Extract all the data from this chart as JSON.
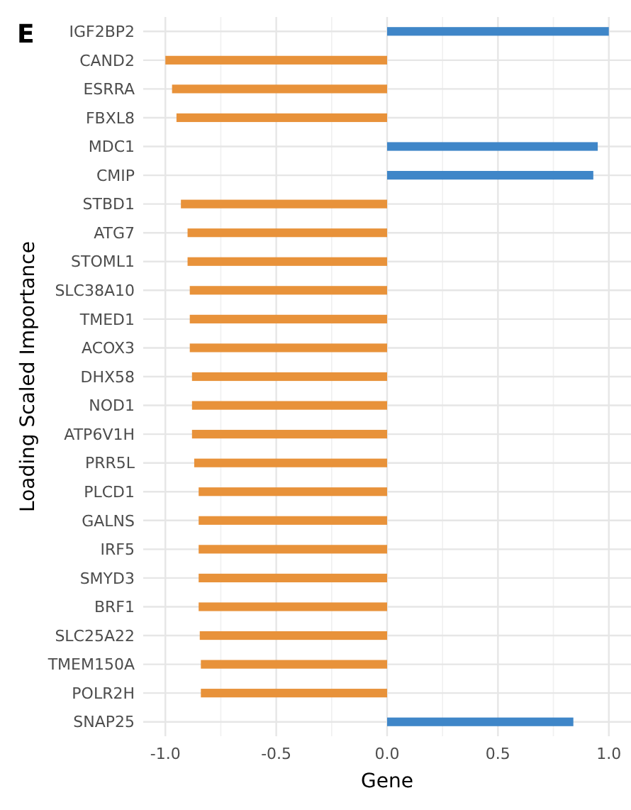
{
  "chart_data": {
    "type": "bar",
    "orientation": "horizontal",
    "title": "E",
    "xlabel": "Gene",
    "ylabel": "Loading Scaled Importance",
    "categories": [
      "IGF2BP2",
      "CAND2",
      "ESRRA",
      "FBXL8",
      "MDC1",
      "CMIP",
      "STBD1",
      "ATG7",
      "STOML1",
      "SLC38A10",
      "TMED1",
      "ACOX3",
      "DHX58",
      "NOD1",
      "ATP6V1H",
      "PRR5L",
      "PLCD1",
      "GALNS",
      "IRF5",
      "SMYD3",
      "BRF1",
      "SLC25A22",
      "TMEM150A",
      "POLR2H",
      "SNAP25"
    ],
    "values": [
      1.0,
      -1.0,
      -0.97,
      -0.95,
      0.95,
      0.93,
      -0.93,
      -0.9,
      -0.9,
      -0.89,
      -0.89,
      -0.89,
      -0.88,
      -0.88,
      -0.88,
      -0.87,
      -0.85,
      -0.85,
      -0.85,
      -0.85,
      -0.85,
      -0.845,
      -0.84,
      -0.84,
      0.84
    ],
    "colors": [
      "#3f86c8",
      "#e8923a",
      "#e8923a",
      "#e8923a",
      "#3f86c8",
      "#3f86c8",
      "#e8923a",
      "#e8923a",
      "#e8923a",
      "#e8923a",
      "#e8923a",
      "#e8923a",
      "#e8923a",
      "#e8923a",
      "#e8923a",
      "#e8923a",
      "#e8923a",
      "#e8923a",
      "#e8923a",
      "#e8923a",
      "#e8923a",
      "#e8923a",
      "#e8923a",
      "#e8923a",
      "#3f86c8"
    ],
    "xlim": [
      -1.1,
      1.1
    ],
    "xticks": [
      {
        "value": -1,
        "label": "-1.0"
      },
      {
        "value": -0.5,
        "label": "-0.5"
      },
      {
        "value": 0,
        "label": "0.0"
      },
      {
        "value": 0.5,
        "label": "0.5"
      },
      {
        "value": 1,
        "label": "1.0"
      }
    ],
    "grid": true
  }
}
